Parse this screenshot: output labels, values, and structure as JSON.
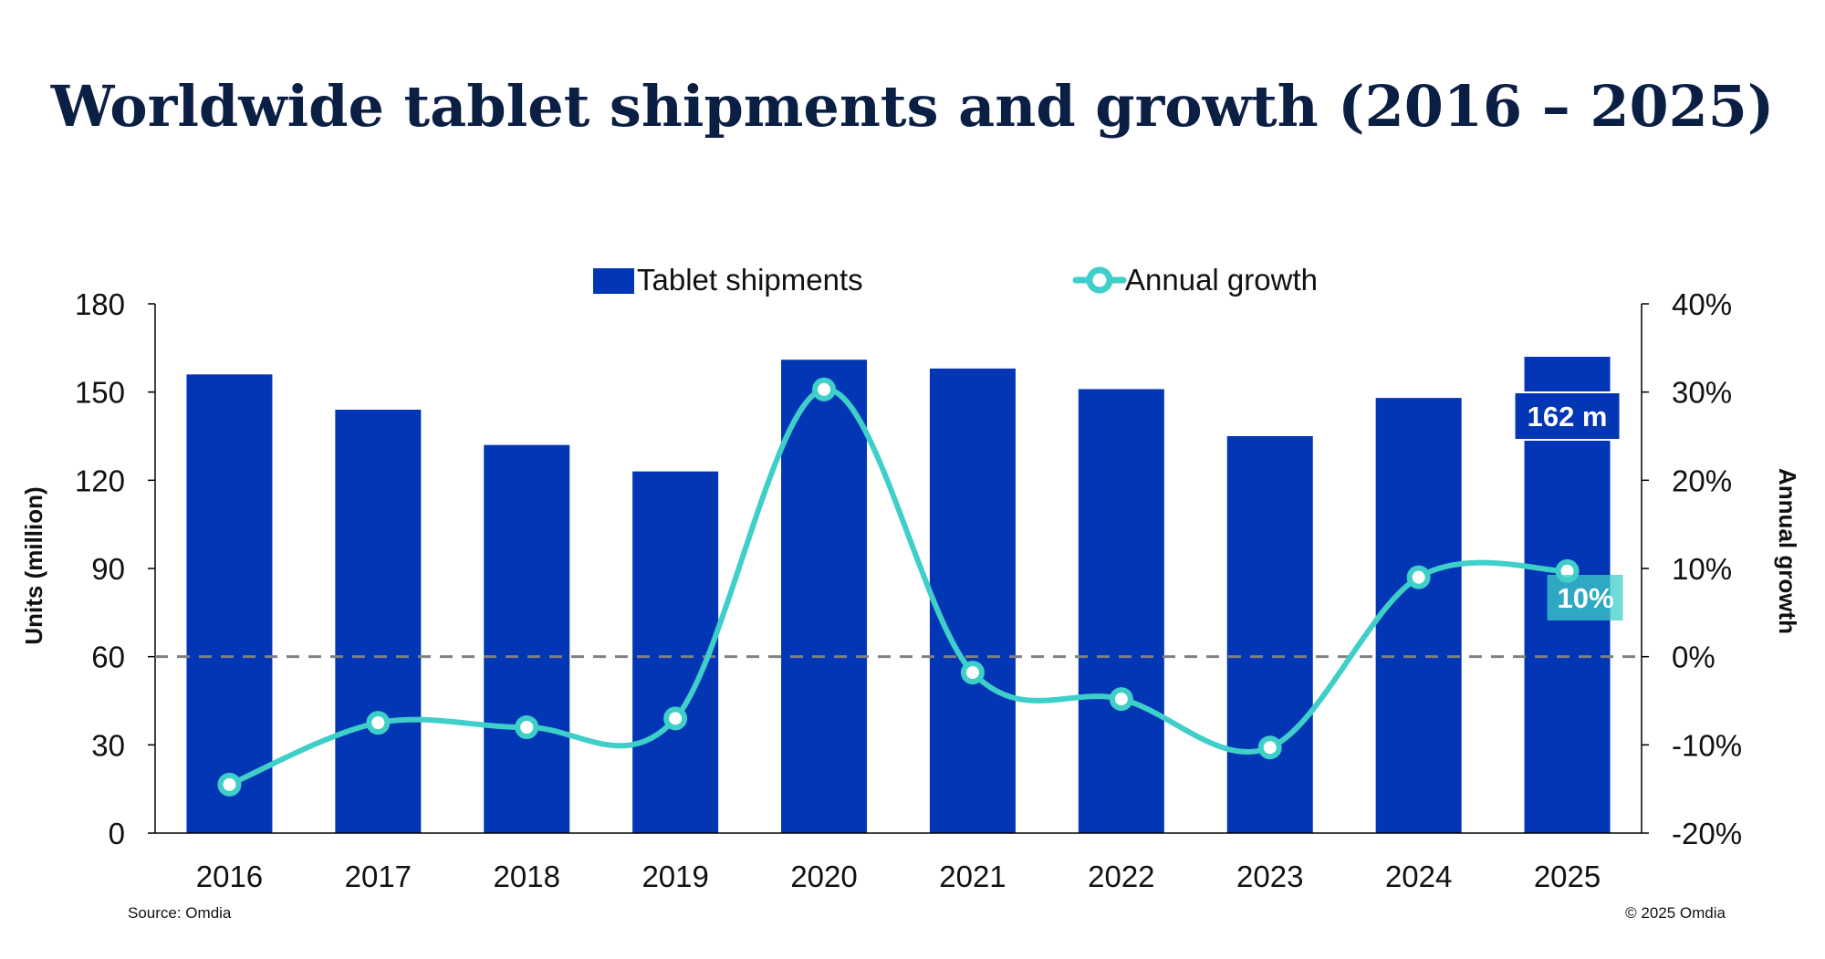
{
  "chart_data": {
    "type": "bar",
    "title": "Worldwide tablet shipments and growth (2016 – 2025)",
    "categories": [
      "2016",
      "2017",
      "2018",
      "2019",
      "2020",
      "2021",
      "2022",
      "2023",
      "2024",
      "2025"
    ],
    "series": [
      {
        "name": "Tablet shipments",
        "type": "bar",
        "axis": "left",
        "color": "#0336b4",
        "values": [
          156,
          144,
          132,
          123,
          161,
          158,
          151,
          135,
          148,
          162
        ]
      },
      {
        "name": "Annual growth",
        "type": "line",
        "axis": "right",
        "color": "#3ecfc8",
        "unit": "%",
        "values": [
          -14.5,
          -7.5,
          -8,
          -7,
          30.3,
          -1.8,
          -4.8,
          -10.3,
          9,
          9.7
        ]
      }
    ],
    "ylabel": "Units (million)",
    "y2label": "Annual growth",
    "ylim": [
      0,
      180
    ],
    "y2lim": [
      -20,
      40
    ],
    "yticks": [
      "0",
      "30",
      "60",
      "90",
      "120",
      "150",
      "180"
    ],
    "y2ticks": [
      "-20%",
      "-10%",
      "0%",
      "10%",
      "20%",
      "30%",
      "40%"
    ],
    "reference_line": {
      "y2": 0,
      "style": "dashed",
      "color": "#808080"
    },
    "annotations": [
      {
        "series": "Tablet shipments",
        "index": 9,
        "text": "162 m"
      },
      {
        "series": "Annual growth",
        "index": 9,
        "text": "10%"
      }
    ],
    "legend": "top-center"
  },
  "footer": {
    "source": "Source: Omdia",
    "copyright": "© 2025 Omdia"
  }
}
